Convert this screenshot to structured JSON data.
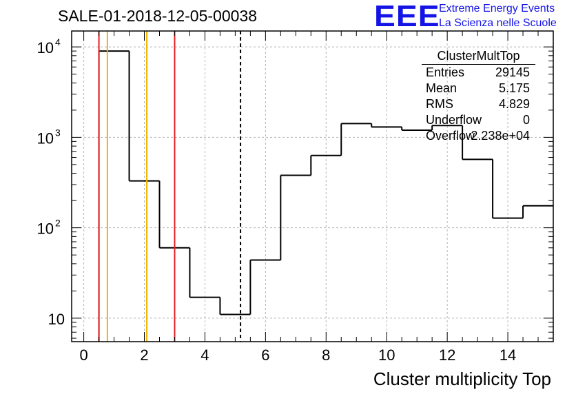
{
  "header": {
    "title": "SALE-01-2018-12-05-00038"
  },
  "logo": {
    "mark": "EEE",
    "line1": "Extreme Energy Events",
    "line2": "La Scienza nelle Scuole",
    "color": "#1414e6"
  },
  "stats_box": {
    "name": "ClusterMultTop",
    "rows": [
      {
        "label": "Entries",
        "value": "29145"
      },
      {
        "label": "Mean",
        "value": "5.175"
      },
      {
        "label": "RMS",
        "value": "4.829"
      },
      {
        "label": "Underflow",
        "value": "0"
      },
      {
        "label": "Overflow",
        "value": "2.238e+04"
      }
    ]
  },
  "chart_data": {
    "type": "bar",
    "style": "step-histogram",
    "title": "SALE-01-2018-12-05-00038",
    "xlabel": "Cluster multiplicity Top",
    "ylabel": "",
    "yscale": "log",
    "xlim": [
      -0.4,
      15.5
    ],
    "ylim": [
      5.5,
      15000
    ],
    "grid": true,
    "x_ticks": [
      0,
      2,
      4,
      6,
      8,
      10,
      12,
      14
    ],
    "y_ticks": [
      {
        "value": 10,
        "base": "10",
        "exp": ""
      },
      {
        "value": 100,
        "base": "10",
        "exp": "2"
      },
      {
        "value": 1000,
        "base": "10",
        "exp": "3"
      },
      {
        "value": 10000,
        "base": "10",
        "exp": "4"
      }
    ],
    "bins": [
      {
        "low": 0.5,
        "high": 1.5,
        "value": 9000
      },
      {
        "low": 1.5,
        "high": 2.5,
        "value": 330
      },
      {
        "low": 2.5,
        "high": 3.5,
        "value": 60
      },
      {
        "low": 3.5,
        "high": 4.5,
        "value": 17
      },
      {
        "low": 4.5,
        "high": 5.5,
        "value": 11
      },
      {
        "low": 5.5,
        "high": 6.5,
        "value": 44
      },
      {
        "low": 6.5,
        "high": 7.5,
        "value": 380
      },
      {
        "low": 7.5,
        "high": 8.5,
        "value": 630
      },
      {
        "low": 8.5,
        "high": 9.5,
        "value": 1420
      },
      {
        "low": 9.5,
        "high": 10.5,
        "value": 1300
      },
      {
        "low": 10.5,
        "high": 11.5,
        "value": 1200
      },
      {
        "low": 11.5,
        "high": 12.5,
        "value": 1350
      },
      {
        "low": 12.5,
        "high": 13.5,
        "value": 570
      },
      {
        "low": 13.5,
        "high": 14.5,
        "value": 128
      },
      {
        "low": 14.5,
        "high": 15.5,
        "value": 175
      }
    ],
    "markers": [
      {
        "x": 0.5,
        "color": "#e61e1e",
        "style": "solid"
      },
      {
        "x": 0.78,
        "color": "#f0b400",
        "style": "solid"
      },
      {
        "x": 2.08,
        "color": "#f0b400",
        "style": "solid"
      },
      {
        "x": 3.0,
        "color": "#e61e1e",
        "style": "solid"
      },
      {
        "x": 5.175,
        "color": "#000000",
        "style": "dashed"
      }
    ]
  }
}
